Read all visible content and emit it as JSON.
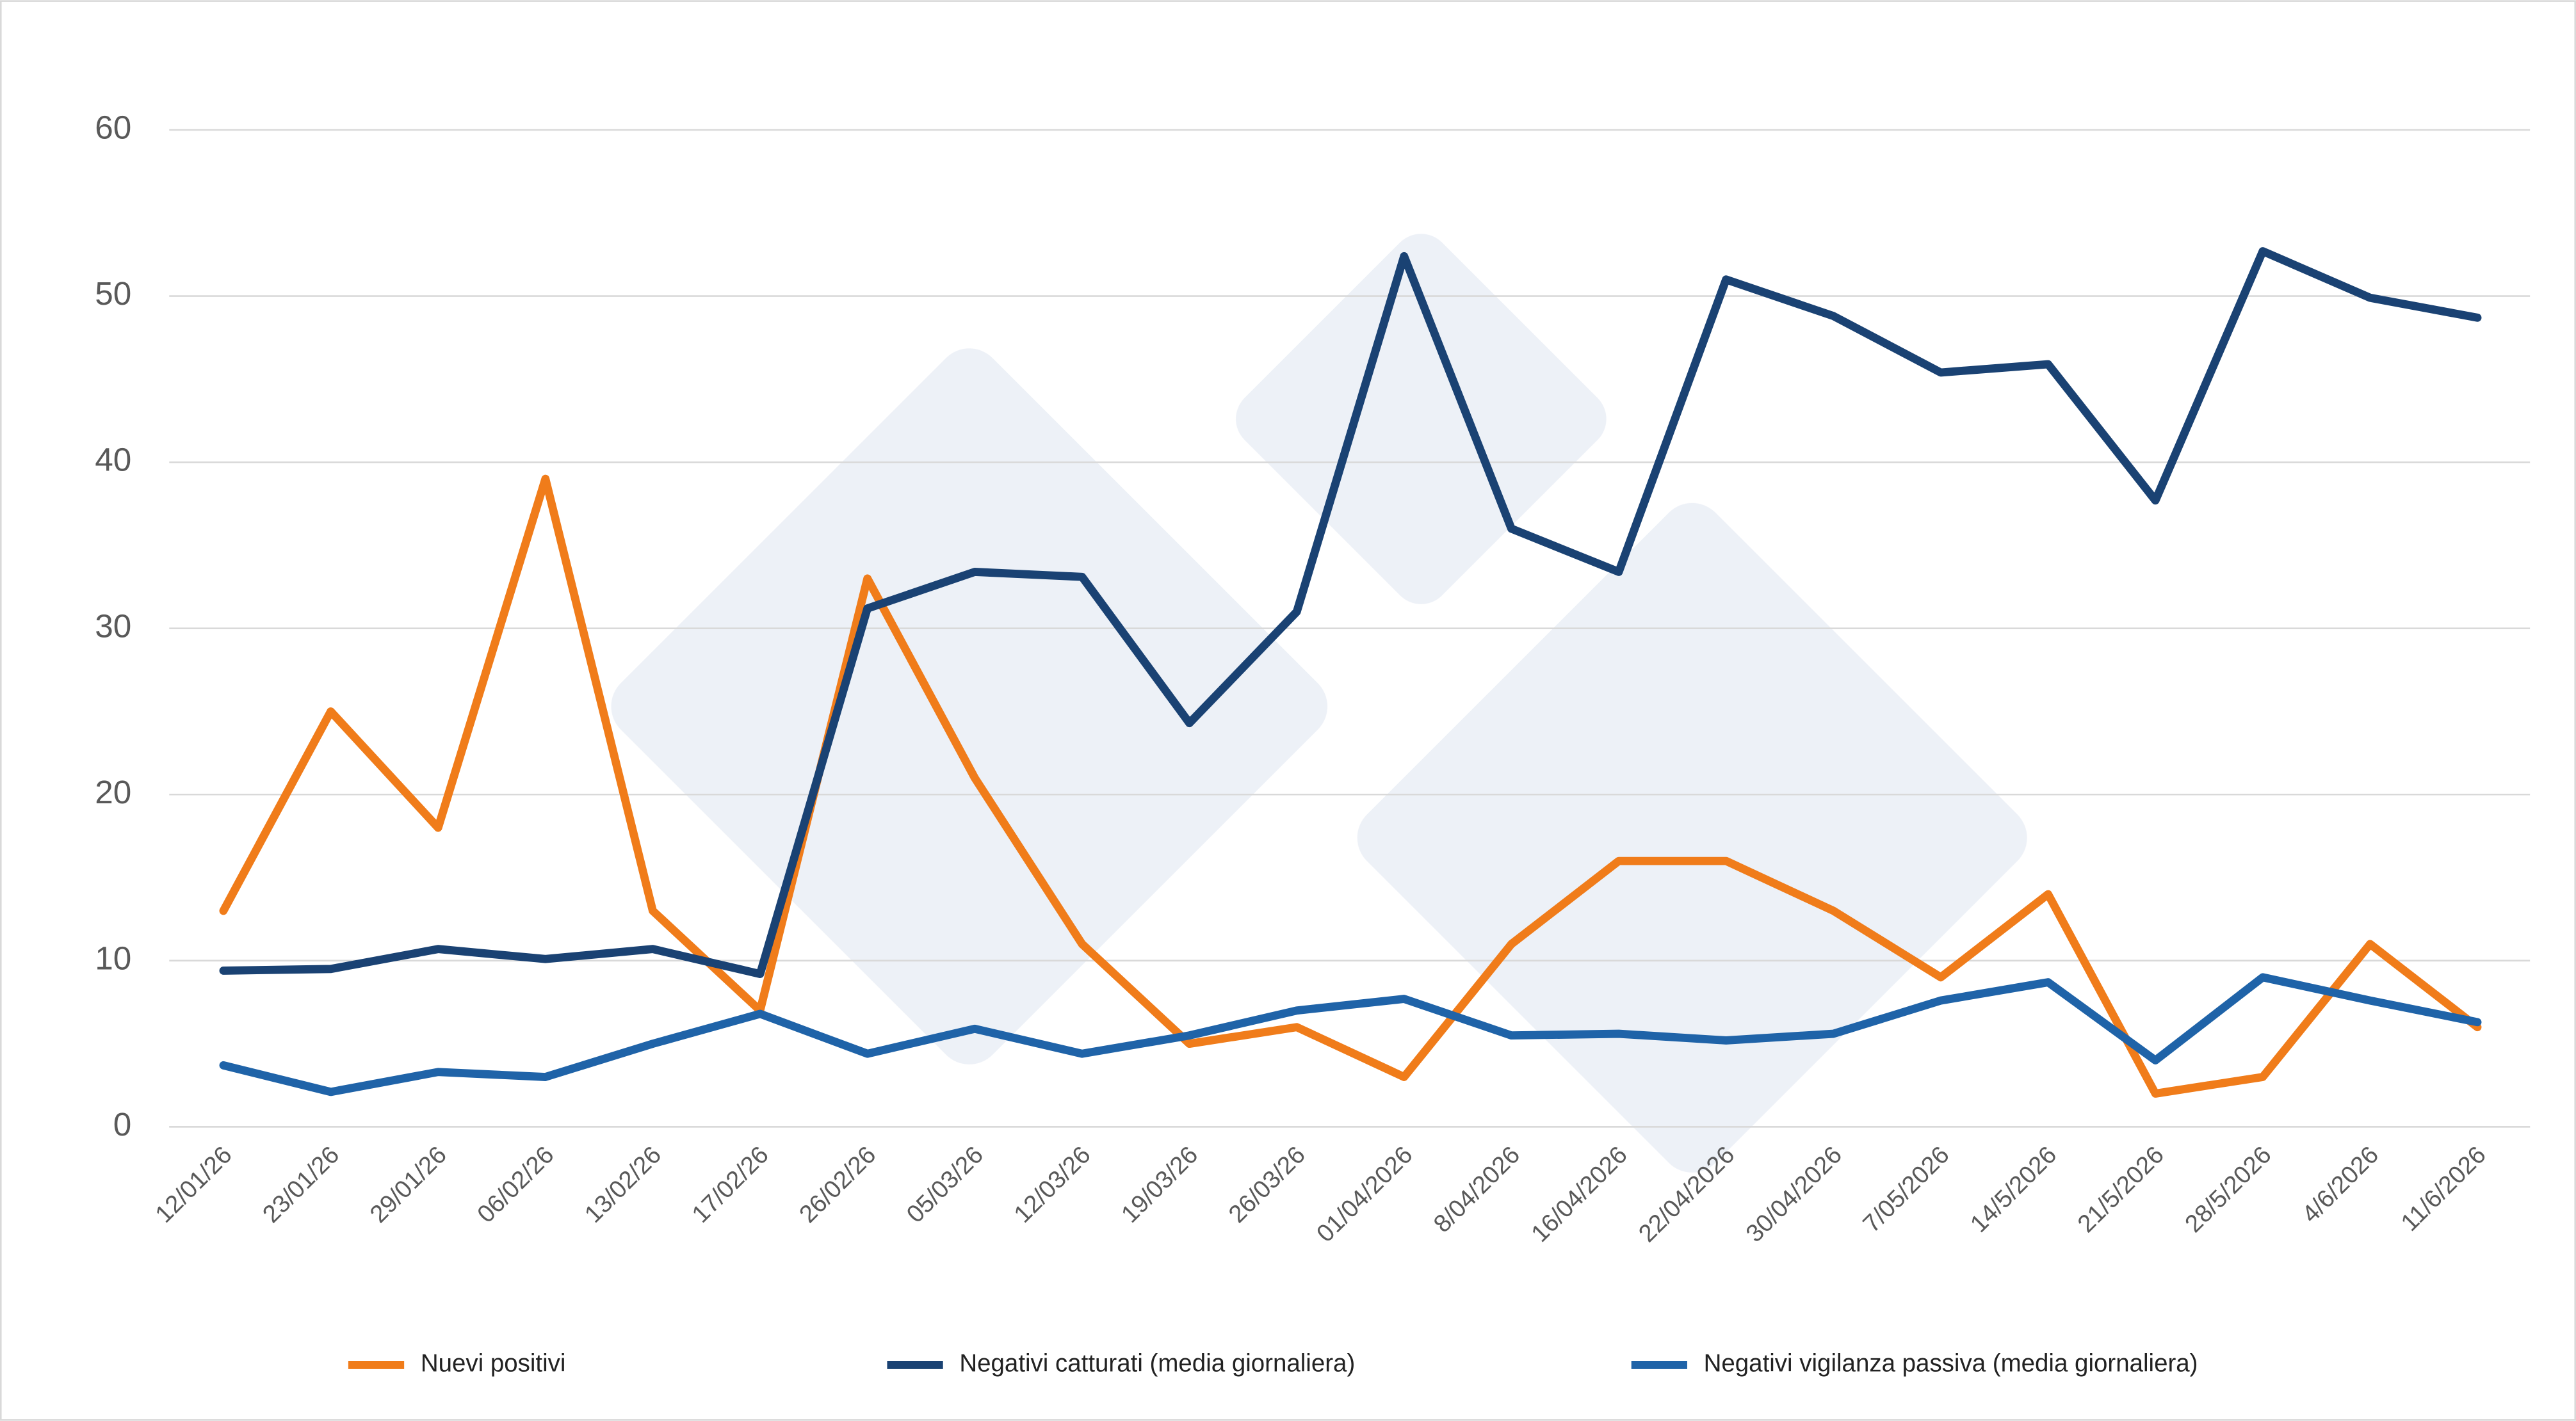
{
  "chart_data": {
    "type": "line",
    "categories": [
      "12/01/26",
      "23/01/26",
      "29/01/26",
      "06/02/26",
      "13/02/26",
      "17/02/26",
      "26/02/26",
      "05/03/26",
      "12/03/26",
      "19/03/26",
      "26/03/26",
      "01/04/2026",
      "8/04/2026",
      "16/04/2026",
      "22/04/2026",
      "30/04/2026",
      "7/05/2026",
      "14/5/2026",
      "21/5/2026",
      "28/5/2026",
      "4/6/2026",
      "11/6/2026"
    ],
    "series": [
      {
        "name": "Nuevi positivi",
        "color": "#f07c1a",
        "values": [
          13,
          25,
          18,
          39,
          13,
          7,
          33,
          21,
          11,
          5,
          6,
          3,
          11,
          16,
          16,
          13,
          9,
          14,
          2,
          3,
          11,
          6
        ]
      },
      {
        "name": "Negativi catturati (media giornaliera)",
        "color": "#1a4273",
        "values": [
          9.4,
          9.5,
          10.7,
          10.1,
          10.7,
          9.2,
          31.2,
          33.4,
          33.1,
          24.3,
          31,
          52.4,
          36,
          33.4,
          51,
          48.8,
          45.4,
          45.9,
          37.7,
          52.7,
          49.9,
          48.7
        ]
      },
      {
        "name": "Negativi vigilanza passiva (media giornaliera)",
        "color": "#1f63a8",
        "values": [
          3.7,
          2.1,
          3.3,
          3,
          5,
          6.8,
          4.4,
          5.9,
          4.4,
          5.5,
          7,
          7.7,
          5.5,
          5.6,
          5.2,
          5.6,
          7.6,
          8.7,
          4,
          9,
          7.6,
          6.3
        ]
      }
    ],
    "ylim": [
      0,
      60
    ],
    "yticks": [
      0,
      10,
      20,
      30,
      40,
      50,
      60
    ],
    "grid": true,
    "legend": "bottom"
  }
}
